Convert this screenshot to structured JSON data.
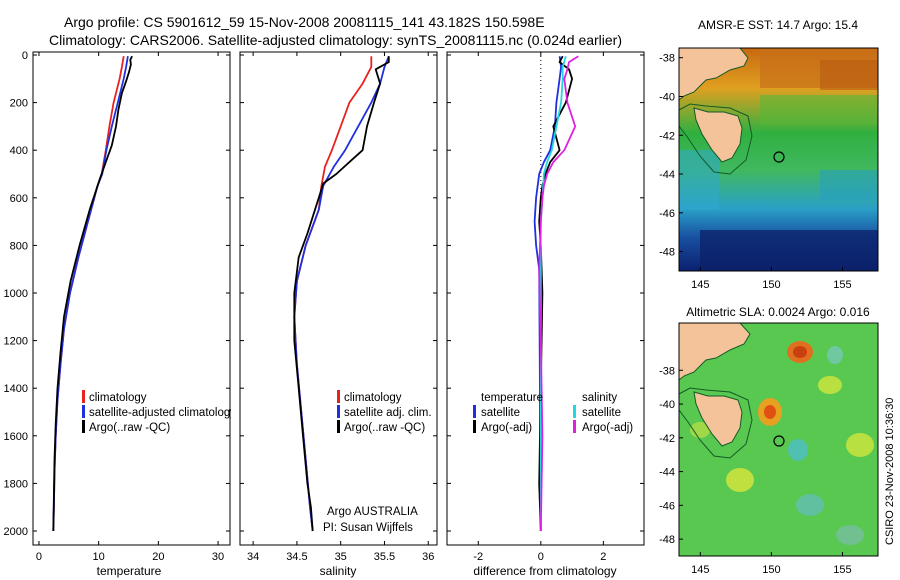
{
  "header": {
    "line1": "Argo profile: CS 5901612_59 15-Nov-2008 20081115_141 43.182S 150.598E",
    "line2": "Climatology: CARS2006. Satellite-adjusted climatology: synTS_20081115.nc (0.024d earlier)"
  },
  "side_label": "CSIRO 23-Nov-2008 10:36:30",
  "colors": {
    "climatology": "#e8231f",
    "satellite": "#2030e0",
    "argo": "#000000",
    "sal_satellite": "#20d8e0",
    "sal_argo": "#e020e0"
  },
  "chart_data": [
    {
      "type": "line",
      "xlabel": "temperature",
      "ylabel": "",
      "xlim": [
        -1,
        32
      ],
      "ylim": [
        2050,
        0
      ],
      "xticks": [
        0,
        10,
        20,
        30
      ],
      "yticks": [
        0,
        200,
        400,
        600,
        800,
        1000,
        1200,
        1400,
        1600,
        1800,
        2000
      ],
      "legend": [
        "climatology",
        "satellite-adjusted climatology",
        "Argo(..raw -QC)"
      ],
      "legend_location": "lower-right",
      "series": [
        {
          "name": "climatology",
          "color": "#e8231f",
          "x": [
            14.2,
            13.9,
            13.5,
            12.5,
            11.8,
            11.2,
            10.5,
            9.8,
            8.2,
            6.6,
            5.2,
            4.2,
            3.6,
            3.1,
            2.8,
            2.6,
            2.5,
            2.4
          ],
          "y": [
            5,
            50,
            100,
            200,
            300,
            400,
            500,
            550,
            700,
            850,
            1000,
            1150,
            1300,
            1450,
            1600,
            1750,
            1900,
            2000
          ]
        },
        {
          "name": "satellite-adjusted climatology",
          "color": "#2030e0",
          "x": [
            14.9,
            14.6,
            14.2,
            13.2,
            12.2,
            11.3,
            10.6,
            9.8,
            8.2,
            6.6,
            5.2,
            4.2,
            3.6,
            3.1,
            2.8,
            2.6,
            2.5,
            2.4
          ],
          "y": [
            5,
            50,
            100,
            200,
            300,
            400,
            500,
            550,
            700,
            850,
            1000,
            1150,
            1300,
            1450,
            1600,
            1750,
            1900,
            2000
          ]
        },
        {
          "name": "Argo(..raw -QC)",
          "color": "#000000",
          "x": [
            15.6,
            15.3,
            15.4,
            15.1,
            14.6,
            13.9,
            13.3,
            12.9,
            12.2,
            11.2,
            10.2,
            8.5,
            6.8,
            5.3,
            4.2,
            3.6,
            3.1,
            2.8,
            2.6,
            2.5,
            2.4
          ],
          "y": [
            5,
            20,
            40,
            70,
            110,
            160,
            230,
            300,
            380,
            450,
            520,
            650,
            800,
            950,
            1100,
            1250,
            1400,
            1550,
            1700,
            1850,
            2000
          ]
        }
      ]
    },
    {
      "type": "line",
      "xlabel": "salinity",
      "ylabel": "",
      "xlim": [
        33.85,
        36.1
      ],
      "ylim": [
        2050,
        0
      ],
      "xticks": [
        34,
        34.5,
        35,
        35.5,
        36
      ],
      "yticks": [
        0,
        200,
        400,
        600,
        800,
        1000,
        1200,
        1400,
        1600,
        1800,
        2000
      ],
      "legend": [
        "climatology",
        "satellite adj. clim.",
        "Argo(..raw -QC)"
      ],
      "legend_location": "lower-right",
      "annotations": [
        "Argo AUSTRALIA",
        "PI: Susan Wijffels"
      ],
      "series": [
        {
          "name": "climatology",
          "color": "#e8231f",
          "x": [
            35.35,
            35.35,
            35.25,
            35.1,
            35.0,
            34.9,
            34.82,
            34.78,
            34.75,
            34.6,
            34.5,
            34.47,
            34.5,
            34.55,
            34.6,
            34.65,
            34.68
          ],
          "y": [
            5,
            50,
            120,
            200,
            300,
            400,
            470,
            550,
            650,
            800,
            950,
            1100,
            1300,
            1500,
            1700,
            1900,
            2000
          ]
        },
        {
          "name": "satellite adj. clim.",
          "color": "#2030e0",
          "x": [
            35.55,
            35.5,
            35.45,
            35.35,
            35.2,
            35.05,
            34.92,
            34.8,
            34.75,
            34.6,
            34.5,
            34.47,
            34.5,
            34.55,
            34.6,
            34.65,
            34.68
          ],
          "y": [
            5,
            50,
            120,
            200,
            300,
            400,
            470,
            550,
            650,
            800,
            950,
            1100,
            1300,
            1500,
            1700,
            1900,
            2000
          ]
        },
        {
          "name": "Argo(..raw -QC)",
          "color": "#000000",
          "x": [
            35.55,
            35.55,
            35.4,
            35.45,
            35.38,
            35.3,
            35.25,
            35.1,
            34.95,
            34.8,
            34.75,
            34.62,
            34.52,
            34.47,
            34.47,
            34.52,
            34.57,
            34.62,
            34.66,
            34.68
          ],
          "y": [
            5,
            30,
            60,
            120,
            200,
            300,
            400,
            450,
            500,
            540,
            600,
            750,
            850,
            1000,
            1200,
            1400,
            1600,
            1800,
            1900,
            2000
          ]
        }
      ]
    },
    {
      "type": "line",
      "xlabel": "difference from climatology",
      "ylabel": "",
      "xlim": [
        -3,
        3.3
      ],
      "ylim": [
        2050,
        0
      ],
      "xticks": [
        -2,
        0,
        2
      ],
      "yticks": [
        0,
        200,
        400,
        600,
        800,
        1000,
        1200,
        1400,
        1600,
        1800,
        2000
      ],
      "legend": [
        "temperature",
        "satellite",
        "Argo(-adj)",
        "salinity",
        "satellite",
        "Argo(-adj)"
      ],
      "legend_location": "lower-center",
      "series": [
        {
          "name": "satellite",
          "color": "#2030e0",
          "x": [
            0.6,
            0.65,
            0.6,
            0.5,
            0.45,
            0.3,
            0.1,
            -0.05,
            -0.15,
            -0.2,
            -0.15,
            -0.05,
            0
          ],
          "y": [
            5,
            50,
            100,
            200,
            300,
            400,
            450,
            500,
            600,
            700,
            800,
            900,
            2000
          ]
        },
        {
          "name": "Argo(-adj)",
          "color": "#000000",
          "x": [
            0.7,
            0.6,
            0.9,
            1.0,
            0.8,
            0.4,
            0.6,
            0.3,
            0.15,
            0.05,
            0.0,
            -0.05,
            0.0,
            0.05,
            0.0,
            -0.05,
            0.0
          ],
          "y": [
            5,
            30,
            60,
            100,
            200,
            300,
            400,
            450,
            500,
            550,
            600,
            700,
            800,
            1000,
            1400,
            1800,
            2000
          ]
        },
        {
          "name": "satellite",
          "color": "#20d8e0",
          "x": [
            0.8,
            0.7,
            0.7,
            0.65,
            0.5,
            0.35,
            0.2,
            0.1,
            0.05,
            0.0,
            0.0
          ],
          "y": [
            5,
            50,
            100,
            200,
            300,
            400,
            450,
            500,
            600,
            700,
            2000
          ]
        },
        {
          "name": "Argo(-adj)",
          "color": "#e020e0",
          "x": [
            1.2,
            0.9,
            0.85,
            0.75,
            0.85,
            1.1,
            0.75,
            0.4,
            0.2,
            0.1,
            0.05,
            0.0,
            -0.05,
            0.0,
            0.05,
            0.0
          ],
          "y": [
            5,
            30,
            60,
            100,
            200,
            300,
            400,
            450,
            500,
            550,
            600,
            700,
            900,
            1200,
            1600,
            2000
          ]
        }
      ]
    },
    {
      "type": "heatmap",
      "title": "AMSR-E SST: 14.7 Argo: 15.4",
      "xlim": [
        143.5,
        157.5
      ],
      "ylim": [
        -49,
        -37.5
      ],
      "xticks": [
        145,
        150,
        155
      ],
      "yticks": [
        -38,
        -40,
        -42,
        -44,
        -46,
        -48
      ],
      "marker": {
        "lon": 150.6,
        "lat": -43.18
      }
    },
    {
      "type": "heatmap",
      "title": "Altimetric SLA: 0.0024 Argo: 0.016",
      "xlim": [
        143.5,
        157.5
      ],
      "ylim": [
        -49,
        -35.2
      ],
      "xticks": [
        145,
        150,
        155
      ],
      "yticks": [
        -38,
        -40,
        -42,
        -44,
        -46,
        -48
      ],
      "marker": {
        "lon": 150.6,
        "lat": -43.18
      }
    }
  ]
}
